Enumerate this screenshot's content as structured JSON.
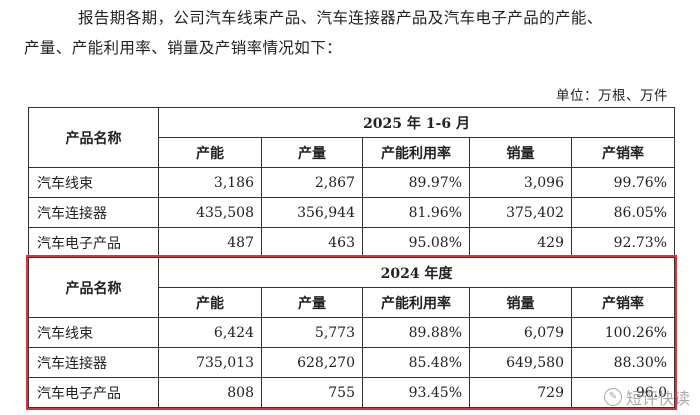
{
  "intro": {
    "line1": "报告期各期，公司汽车线束产品、汽车连接器产品及汽车电子产品的产能、",
    "line2": "产量、产能利用率、销量及产销率情况如下："
  },
  "unit": "单位：万根、万件",
  "tables": [
    {
      "period": "2025 年 1-6 月",
      "name_header": "产品名称",
      "columns": [
        "产能",
        "产量",
        "产能利用率",
        "销量",
        "产销率"
      ],
      "rows": [
        {
          "name": "汽车线束",
          "cells": [
            "3,186",
            "2,867",
            "89.97%",
            "3,096",
            "99.76%"
          ]
        },
        {
          "name": "汽车连接器",
          "cells": [
            "435,508",
            "356,944",
            "81.96%",
            "375,402",
            "86.05%"
          ]
        },
        {
          "name": "汽车电子产品",
          "cells": [
            "487",
            "463",
            "95.08%",
            "429",
            "92.73%"
          ]
        }
      ]
    },
    {
      "period": "2024 年度",
      "name_header": "产品名称",
      "columns": [
        "产能",
        "产量",
        "产能利用率",
        "销量",
        "产销率"
      ],
      "rows": [
        {
          "name": "汽车线束",
          "cells": [
            "6,424",
            "5,773",
            "89.88%",
            "6,079",
            "100.26%"
          ]
        },
        {
          "name": "汽车连接器",
          "cells": [
            "735,013",
            "628,270",
            "85.48%",
            "649,580",
            "88.30%"
          ]
        },
        {
          "name": "汽车电子产品",
          "cells": [
            "808",
            "755",
            "93.45%",
            "729",
            "96.0"
          ]
        }
      ]
    }
  ],
  "watermark": {
    "icon": "watermark-logo-icon",
    "text": "短评快读"
  },
  "colors": {
    "highlight": "#e0323c"
  }
}
